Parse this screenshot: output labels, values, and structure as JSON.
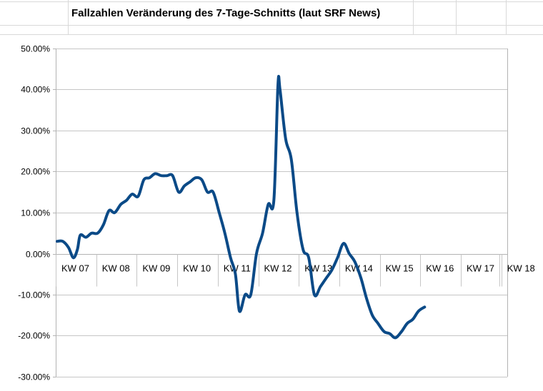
{
  "window": {
    "title": "Fallzahlen Veränderung des 7-Tage-Schnitts (laut SRF News)"
  },
  "colors": {
    "series": "#0b4a87",
    "axis": "#b3b3b3",
    "gridline": "#c6c6c6",
    "sheet_grid": "#d9d9d9"
  },
  "chart_data": {
    "type": "line",
    "title": "Fallzahlen Veränderung des 7-Tage-Schnitts (laut SRF News)",
    "xlabel": "",
    "ylabel": "",
    "ylim": [
      -0.3,
      0.5
    ],
    "y_ticks": [
      0.5,
      0.4,
      0.3,
      0.2,
      0.1,
      0.0,
      -0.1,
      -0.2,
      -0.3
    ],
    "y_tick_labels": [
      "50.00%",
      "40.00%",
      "30.00%",
      "20.00%",
      "10.00%",
      "0.00%",
      "-10.00%",
      "-20.00%",
      "-30.00%"
    ],
    "grid": "horizontal",
    "legend": "none",
    "categories": [
      "KW 07",
      "KW 08",
      "KW 09",
      "KW 10",
      "KW 11",
      "KW 12",
      "KW 13",
      "KW 14",
      "KW 15",
      "KW 16",
      "KW 17",
      "KW 18"
    ],
    "series": [
      {
        "smooth": true,
        "points": [
          [
            0.0,
            0.03
          ],
          [
            0.14,
            0.03
          ],
          [
            0.28,
            0.015
          ],
          [
            0.4,
            -0.01
          ],
          [
            0.5,
            0.01
          ],
          [
            0.57,
            0.045
          ],
          [
            0.71,
            0.04
          ],
          [
            0.85,
            0.05
          ],
          [
            1.0,
            0.05
          ],
          [
            1.14,
            0.07
          ],
          [
            1.28,
            0.105
          ],
          [
            1.42,
            0.1
          ],
          [
            1.57,
            0.12
          ],
          [
            1.71,
            0.13
          ],
          [
            1.85,
            0.145
          ],
          [
            2.0,
            0.14
          ],
          [
            2.14,
            0.18
          ],
          [
            2.28,
            0.185
          ],
          [
            2.42,
            0.195
          ],
          [
            2.57,
            0.19
          ],
          [
            2.71,
            0.19
          ],
          [
            2.85,
            0.19
          ],
          [
            3.0,
            0.15
          ],
          [
            3.14,
            0.165
          ],
          [
            3.28,
            0.175
          ],
          [
            3.42,
            0.185
          ],
          [
            3.57,
            0.18
          ],
          [
            3.71,
            0.15
          ],
          [
            3.85,
            0.15
          ],
          [
            4.0,
            0.1
          ],
          [
            4.14,
            0.05
          ],
          [
            4.28,
            -0.01
          ],
          [
            4.4,
            -0.05
          ],
          [
            4.5,
            -0.14
          ],
          [
            4.64,
            -0.1
          ],
          [
            4.78,
            -0.1
          ],
          [
            4.92,
            0.0
          ],
          [
            5.07,
            0.05
          ],
          [
            5.21,
            0.12
          ],
          [
            5.35,
            0.13
          ],
          [
            5.45,
            0.41
          ],
          [
            5.5,
            0.4
          ],
          [
            5.64,
            0.28
          ],
          [
            5.78,
            0.23
          ],
          [
            5.92,
            0.1
          ],
          [
            6.07,
            0.01
          ],
          [
            6.21,
            -0.01
          ],
          [
            6.35,
            -0.1
          ],
          [
            6.5,
            -0.08
          ],
          [
            6.64,
            -0.06
          ],
          [
            6.78,
            -0.04
          ],
          [
            6.92,
            -0.01
          ],
          [
            7.07,
            0.025
          ],
          [
            7.21,
            0.0
          ],
          [
            7.35,
            -0.02
          ],
          [
            7.5,
            -0.06
          ],
          [
            7.64,
            -0.11
          ],
          [
            7.78,
            -0.15
          ],
          [
            7.92,
            -0.17
          ],
          [
            8.07,
            -0.19
          ],
          [
            8.21,
            -0.195
          ],
          [
            8.35,
            -0.205
          ],
          [
            8.5,
            -0.19
          ],
          [
            8.64,
            -0.17
          ],
          [
            8.78,
            -0.16
          ],
          [
            8.92,
            -0.14
          ],
          [
            9.07,
            -0.13
          ]
        ]
      }
    ]
  }
}
